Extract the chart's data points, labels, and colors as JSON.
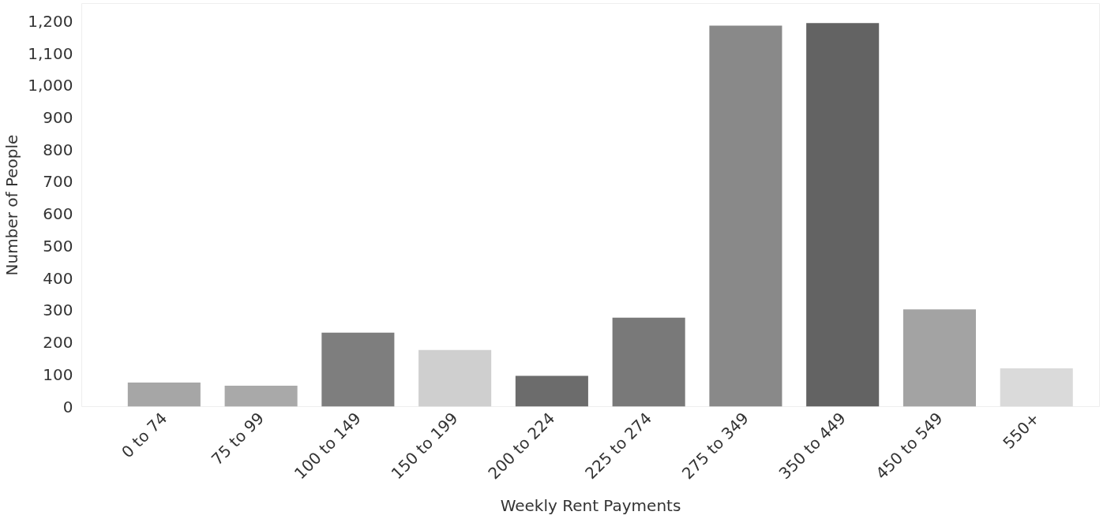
{
  "chart_data": {
    "type": "bar",
    "xlabel": "Weekly Rent Payments",
    "ylabel": "Number of People",
    "categories": [
      "0 to 74",
      "75 to 99",
      "100 to 149",
      "150 to 199",
      "200 to 224",
      "225 to 274",
      "275 to 349",
      "350 to 449",
      "450 to 549",
      "550+"
    ],
    "values": [
      75,
      65,
      230,
      176,
      96,
      277,
      1186,
      1194,
      303,
      119
    ],
    "colors": [
      "#a6a6a6",
      "#a9a9a9",
      "#7e7e7e",
      "#cfcfcf",
      "#6c6c6c",
      "#797979",
      "#898989",
      "#636363",
      "#a3a3a3",
      "#dadada"
    ],
    "ylim": [
      0,
      1255
    ],
    "yticks": [
      0,
      100,
      200,
      300,
      400,
      500,
      600,
      700,
      800,
      900,
      {
        "value": 1000,
        "label": "1,000"
      },
      {
        "value": 1100,
        "label": "1,100"
      },
      {
        "value": 1200,
        "label": "1,200"
      }
    ],
    "grid": false
  }
}
